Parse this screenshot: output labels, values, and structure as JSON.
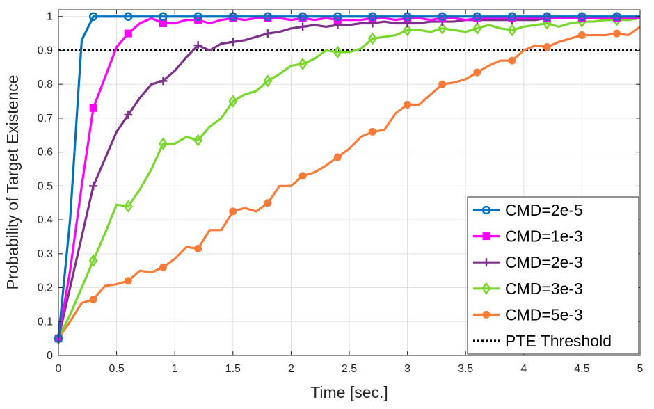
{
  "chart_data": {
    "type": "line",
    "xlabel": "Time [sec.]",
    "ylabel": "Probability of Target Existence",
    "xlim": [
      0,
      5
    ],
    "ylim": [
      0,
      1.02
    ],
    "xticks": [
      0,
      0.5,
      1,
      1.5,
      2,
      2.5,
      3,
      3.5,
      4,
      4.5,
      5
    ],
    "xtick_labels": [
      "0",
      "0.5",
      "1",
      "1.5",
      "2",
      "2.5",
      "3",
      "3.5",
      "4",
      "4.5",
      "5"
    ],
    "yticks": [
      0,
      0.1,
      0.2,
      0.3,
      0.4,
      0.5,
      0.6,
      0.7,
      0.8,
      0.9,
      1
    ],
    "ytick_labels": [
      "0",
      "0.1",
      "0.2",
      "0.3",
      "0.4",
      "0.5",
      "0.6",
      "0.7",
      "0.8",
      "0.9",
      "1"
    ],
    "grid": true,
    "legend_position": "bottom-right",
    "x": [
      0,
      0.1,
      0.2,
      0.3,
      0.4,
      0.5,
      0.6,
      0.7,
      0.8,
      0.9,
      1.0,
      1.1,
      1.2,
      1.3,
      1.4,
      1.5,
      1.6,
      1.7,
      1.8,
      1.9,
      2.0,
      2.1,
      2.2,
      2.3,
      2.4,
      2.5,
      2.6,
      2.7,
      2.8,
      2.9,
      3.0,
      3.1,
      3.2,
      3.3,
      3.4,
      3.5,
      3.6,
      3.7,
      3.8,
      3.9,
      4.0,
      4.1,
      4.2,
      4.3,
      4.4,
      4.5,
      4.6,
      4.7,
      4.8,
      4.9,
      5.0
    ],
    "marker_indices": [
      0,
      3,
      6,
      9,
      12,
      15,
      18,
      21,
      24,
      27,
      30,
      33,
      36,
      39,
      42,
      45,
      48
    ],
    "series": [
      {
        "name": "CMD=2e-5",
        "color": "#0072BD",
        "marker": "circle",
        "values": [
          0.05,
          0.4,
          0.93,
          1.0,
          1.0,
          1.0,
          1.0,
          1.0,
          1.0,
          1.0,
          1.0,
          1.0,
          1.0,
          1.0,
          1.0,
          1.0,
          1.0,
          1.0,
          1.0,
          1.0,
          1.0,
          1.0,
          1.0,
          1.0,
          1.0,
          1.0,
          1.0,
          1.0,
          1.0,
          1.0,
          1.0,
          1.0,
          1.0,
          1.0,
          1.0,
          1.0,
          1.0,
          1.0,
          1.0,
          1.0,
          1.0,
          1.0,
          1.0,
          1.0,
          1.0,
          1.0,
          1.0,
          1.0,
          1.0,
          1.0,
          1.0
        ]
      },
      {
        "name": "CMD=1e-3",
        "color": "#FF00FF",
        "marker": "square",
        "values": [
          0.05,
          0.25,
          0.5,
          0.73,
          0.82,
          0.91,
          0.95,
          0.98,
          0.995,
          0.98,
          0.98,
          0.99,
          0.99,
          0.98,
          0.99,
          0.995,
          0.99,
          0.995,
          0.995,
          0.995,
          0.99,
          0.995,
          0.99,
          0.995,
          0.99,
          0.99,
          0.99,
          0.995,
          0.995,
          0.99,
          0.995,
          0.995,
          0.99,
          0.995,
          0.995,
          0.99,
          0.995,
          0.995,
          0.995,
          0.995,
          0.995,
          0.995,
          0.995,
          0.995,
          0.995,
          0.995,
          0.995,
          0.995,
          0.995,
          0.995,
          0.995
        ]
      },
      {
        "name": "CMD=2e-3",
        "color": "#7E2F8E",
        "marker": "plus",
        "values": [
          0.05,
          0.2,
          0.35,
          0.5,
          0.58,
          0.66,
          0.71,
          0.76,
          0.8,
          0.81,
          0.84,
          0.88,
          0.915,
          0.9,
          0.92,
          0.925,
          0.93,
          0.94,
          0.95,
          0.955,
          0.965,
          0.97,
          0.975,
          0.97,
          0.975,
          0.975,
          0.98,
          0.98,
          0.985,
          0.98,
          0.98,
          0.98,
          0.985,
          0.985,
          0.985,
          0.99,
          0.99,
          0.99,
          0.99,
          0.99,
          0.99,
          0.99,
          0.995,
          0.995,
          0.995,
          0.995,
          0.995,
          0.995,
          0.995,
          0.995,
          0.995
        ]
      },
      {
        "name": "CMD=3e-3",
        "color": "#77D72A",
        "marker": "diamond",
        "values": [
          0.05,
          0.12,
          0.2,
          0.28,
          0.36,
          0.445,
          0.44,
          0.49,
          0.55,
          0.625,
          0.625,
          0.645,
          0.635,
          0.675,
          0.7,
          0.75,
          0.77,
          0.78,
          0.81,
          0.83,
          0.855,
          0.86,
          0.875,
          0.9,
          0.895,
          0.895,
          0.905,
          0.935,
          0.94,
          0.945,
          0.96,
          0.96,
          0.955,
          0.965,
          0.96,
          0.955,
          0.965,
          0.975,
          0.965,
          0.96,
          0.97,
          0.975,
          0.98,
          0.97,
          0.98,
          0.985,
          0.985,
          0.99,
          0.99,
          0.99,
          0.995
        ]
      },
      {
        "name": "CMD=5e-3",
        "color": "#F97B37",
        "marker": "dot",
        "values": [
          0.05,
          0.1,
          0.155,
          0.165,
          0.205,
          0.21,
          0.22,
          0.25,
          0.245,
          0.26,
          0.285,
          0.32,
          0.315,
          0.37,
          0.37,
          0.425,
          0.435,
          0.425,
          0.45,
          0.5,
          0.5,
          0.53,
          0.54,
          0.56,
          0.585,
          0.61,
          0.645,
          0.66,
          0.665,
          0.715,
          0.74,
          0.74,
          0.77,
          0.8,
          0.805,
          0.815,
          0.835,
          0.855,
          0.87,
          0.87,
          0.9,
          0.915,
          0.91,
          0.925,
          0.935,
          0.945,
          0.945,
          0.945,
          0.95,
          0.945,
          0.97
        ]
      }
    ],
    "threshold": {
      "name": "PTE Threshold",
      "value": 0.9,
      "color": "#000000",
      "style": "dotted"
    }
  }
}
